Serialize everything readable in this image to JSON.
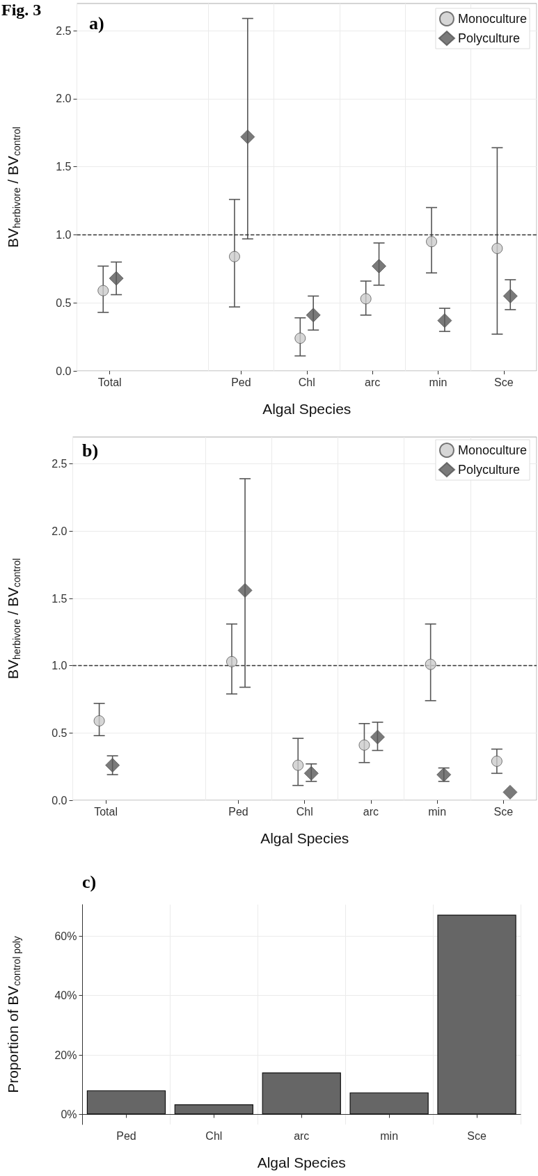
{
  "chart_data": [
    {
      "type": "scatter",
      "title": "a)",
      "annotations": [
        "Fig. 3"
      ],
      "categories": [
        "Total",
        null,
        "Ped",
        "Chl",
        "arc",
        "min",
        "Sce"
      ],
      "xlabel": "Algal Species",
      "ylabel": "BV$_{herbivore}$ / BV$_{control}$",
      "ylim": [
        0,
        2.7
      ],
      "yticks": [
        {
          "value": 0,
          "label": "0.0"
        },
        0.5,
        {
          "value": 1,
          "label": "1.0"
        },
        1.5,
        {
          "value": 2,
          "label": "2.0"
        },
        2.5
      ],
      "grid": true,
      "legend": "top right",
      "ref_lines": [
        {
          "axis": "y",
          "value": 1,
          "line_style": "dashed"
        }
      ],
      "series": [
        {
          "name": "Monoculture",
          "marker": "circle",
          "color": "#cccccc",
          "values": [
            0.59,
            null,
            0.84,
            0.24,
            0.53,
            0.95,
            0.9
          ],
          "errors": [
            [
              0.43,
              0.77
            ],
            null,
            [
              0.47,
              1.26
            ],
            [
              0.11,
              0.39
            ],
            [
              0.41,
              0.66
            ],
            [
              0.72,
              1.2
            ],
            [
              0.27,
              1.64
            ]
          ]
        },
        {
          "name": "Polyculture",
          "marker": "diamond",
          "color": "#595959",
          "values": [
            0.68,
            null,
            1.72,
            0.41,
            0.77,
            0.37,
            0.55
          ],
          "errors": [
            [
              0.56,
              0.8
            ],
            null,
            [
              0.97,
              2.59
            ],
            [
              0.3,
              0.55
            ],
            [
              0.63,
              0.94
            ],
            [
              0.29,
              0.46
            ],
            [
              0.45,
              0.67
            ]
          ]
        }
      ]
    },
    {
      "type": "scatter",
      "title": "b)",
      "categories": [
        "Total",
        null,
        "Ped",
        "Chl",
        "arc",
        "min",
        "Sce"
      ],
      "xlabel": "Algal Species",
      "ylabel": "BV$_{herbivore}$ / BV$_{control}$",
      "ylim": [
        0,
        2.7
      ],
      "yticks": [
        {
          "value": 0,
          "label": "0.0"
        },
        0.5,
        {
          "value": 1,
          "label": "1.0"
        },
        1.5,
        {
          "value": 2,
          "label": "2.0"
        },
        2.5
      ],
      "grid": true,
      "legend": "top right",
      "ref_lines": [
        {
          "axis": "y",
          "value": 1,
          "line_style": "dashed"
        }
      ],
      "series": [
        {
          "name": "Monoculture",
          "marker": "circle",
          "color": "#cccccc",
          "values": [
            0.59,
            null,
            1.03,
            0.26,
            0.41,
            1.01,
            0.29
          ],
          "errors": [
            [
              0.48,
              0.72
            ],
            null,
            [
              0.79,
              1.31
            ],
            [
              0.11,
              0.46
            ],
            [
              0.28,
              0.57
            ],
            [
              0.74,
              1.31
            ],
            [
              0.2,
              0.38
            ]
          ]
        },
        {
          "name": "Polyculture",
          "marker": "diamond",
          "color": "#595959",
          "values": [
            0.26,
            null,
            1.56,
            0.2,
            0.47,
            0.19,
            0.06
          ],
          "errors": [
            [
              0.19,
              0.33
            ],
            null,
            [
              0.84,
              2.39
            ],
            [
              0.14,
              0.27
            ],
            [
              0.37,
              0.58
            ],
            [
              0.14,
              0.24
            ],
            null
          ]
        }
      ]
    },
    {
      "type": "bar",
      "title": "c)",
      "categories": [
        "Ped",
        "Chl",
        "arc",
        "min",
        "Sce"
      ],
      "xlabel": "Algal Species",
      "ylabel": "Proportion of BV$_{control poly}$",
      "ylim": [
        -3.4,
        70.6
      ],
      "yticks": [
        {
          "value": 0,
          "label": "0%"
        },
        {
          "value": 20,
          "label": "20%"
        },
        {
          "value": 40,
          "label": "40%"
        },
        {
          "value": 60,
          "label": "60%"
        }
      ],
      "grid": true,
      "color": "#666666",
      "values": [
        8.1,
        3.4,
        14.1,
        7.4,
        67.2
      ]
    }
  ]
}
